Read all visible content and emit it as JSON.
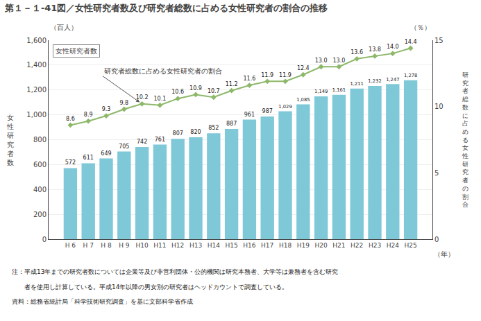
{
  "chart_data": {
    "type": "bar",
    "title": "第１－１-41図／女性研究者数及び研究者総数に占める女性研究者の割合の推移",
    "categories": [
      "H 6",
      "H 7",
      "H 8",
      "H 9",
      "H10",
      "H11",
      "H12",
      "H13",
      "H14",
      "H15",
      "H16",
      "H17",
      "H18",
      "H19",
      "H20",
      "H21",
      "H22",
      "H23",
      "H24",
      "H25"
    ],
    "series": [
      {
        "name": "女性研究者数",
        "type": "bar",
        "color": "#7EC8D8",
        "values": [
          572,
          611,
          649,
          705,
          742,
          761,
          807,
          820,
          852,
          887,
          961,
          987,
          1029,
          1085,
          1149,
          1161,
          1211,
          1232,
          1247,
          1278
        ],
        "value_labels": [
          "572",
          "611",
          "649",
          "705",
          "742",
          "761",
          "807",
          "820",
          "852",
          "887",
          "961",
          "987",
          "1,029",
          "1,085",
          "1,149",
          "1,161",
          "1,211",
          "1,232",
          "1,247",
          "1,278"
        ]
      },
      {
        "name": "研究者総数に占める女性研究者の割合",
        "type": "line",
        "axis": "y2",
        "color": "#8DB86A",
        "marker": "diamond",
        "values": [
          8.6,
          8.9,
          9.3,
          9.8,
          10.2,
          10.1,
          10.6,
          10.9,
          10.7,
          11.2,
          11.6,
          11.9,
          11.9,
          12.4,
          13.0,
          13.0,
          13.6,
          13.8,
          14.0,
          14.4
        ],
        "value_labels": [
          "8.6",
          "8.9",
          "9.3",
          "9.8",
          "10.2",
          "10.1",
          "10.6",
          "10.9",
          "10.7",
          "11.2",
          "11.6",
          "11.9",
          "11.9",
          "12.4",
          "13.0",
          "13.0",
          "13.6",
          "13.8",
          "14.0",
          "14.4"
        ]
      }
    ],
    "ylim": [
      0,
      1600
    ],
    "yticks": [
      0,
      200,
      400,
      600,
      800,
      {
        "value": 1000,
        "label": "1,000"
      },
      {
        "value": 1200,
        "label": "1,200"
      },
      {
        "value": 1400,
        "label": "1,400"
      },
      {
        "value": 1600,
        "label": "1,600"
      }
    ],
    "y2lim": [
      0,
      15
    ],
    "y2ticks": [
      0,
      5,
      10,
      15
    ],
    "grid": true,
    "data_labels": true,
    "xlabel": "（年）",
    "ylabel": "女\n性\n研\n究\n者\n数",
    "y2label": "研\n究\n者\n総\n数\nに\n占\nめ\nる\n女\n性\n研\n究\n者\nの\n割\n合",
    "y_unit": "（百人）",
    "y2_unit": "（％）",
    "notes": [
      "注：平成13年までの研究者数については企業等及び非営利団体・公的機関は研究本務者、大学等は兼務者を含む研究",
      "　　者を使用し計算している。平成14年以降の男女別の研究者はヘッドカウントで調査している。"
    ],
    "source": "資料：総務省統計局「科学技術研究調査」を基に文部科学省作成"
  }
}
